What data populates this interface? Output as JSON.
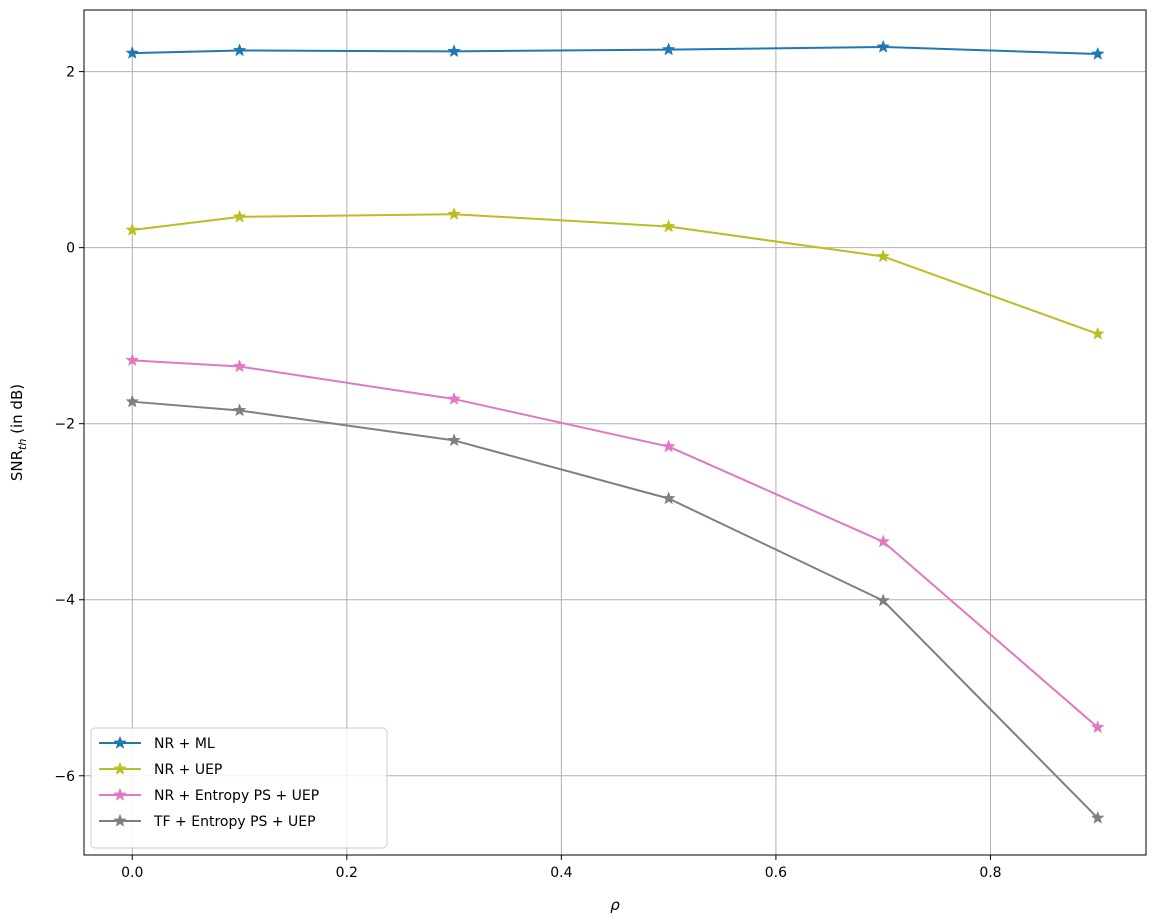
{
  "chart_data": {
    "type": "line",
    "xlabel": "ρ",
    "ylabel": {
      "base": "SNR",
      "subscript": "th",
      "suffix": " (in dB)"
    },
    "xlim": [
      -0.045,
      0.945
    ],
    "ylim": [
      -6.9,
      2.7
    ],
    "xticks": [
      0.0,
      0.2,
      0.4,
      0.6,
      0.8
    ],
    "xtick_labels": [
      "0.0",
      "0.2",
      "0.4",
      "0.6",
      "0.8"
    ],
    "yticks": [
      2,
      0,
      -2,
      -4,
      -6
    ],
    "ytick_labels": [
      "2",
      "0",
      "−2",
      "−4",
      "−6"
    ],
    "grid": true,
    "legend_position": "lower-left",
    "x": [
      0.0,
      0.1,
      0.3,
      0.5,
      0.7,
      0.9
    ],
    "series": [
      {
        "name": "NR + ML",
        "color": "#1f77b4",
        "marker": "star",
        "values": [
          2.21,
          2.24,
          2.23,
          2.25,
          2.28,
          2.2
        ]
      },
      {
        "name": "NR + UEP",
        "color": "#bcbd22",
        "marker": "star",
        "values": [
          0.2,
          0.35,
          0.38,
          0.24,
          -0.1,
          -0.98
        ]
      },
      {
        "name": "NR + Entropy PS + UEP",
        "color": "#e377c2",
        "marker": "star",
        "values": [
          -1.28,
          -1.35,
          -1.72,
          -2.26,
          -3.34,
          -5.45
        ]
      },
      {
        "name": "TF + Entropy PS + UEP",
        "color": "#7f7f7f",
        "marker": "star",
        "values": [
          -1.75,
          -1.85,
          -2.19,
          -2.85,
          -4.01,
          -6.48
        ]
      }
    ]
  }
}
